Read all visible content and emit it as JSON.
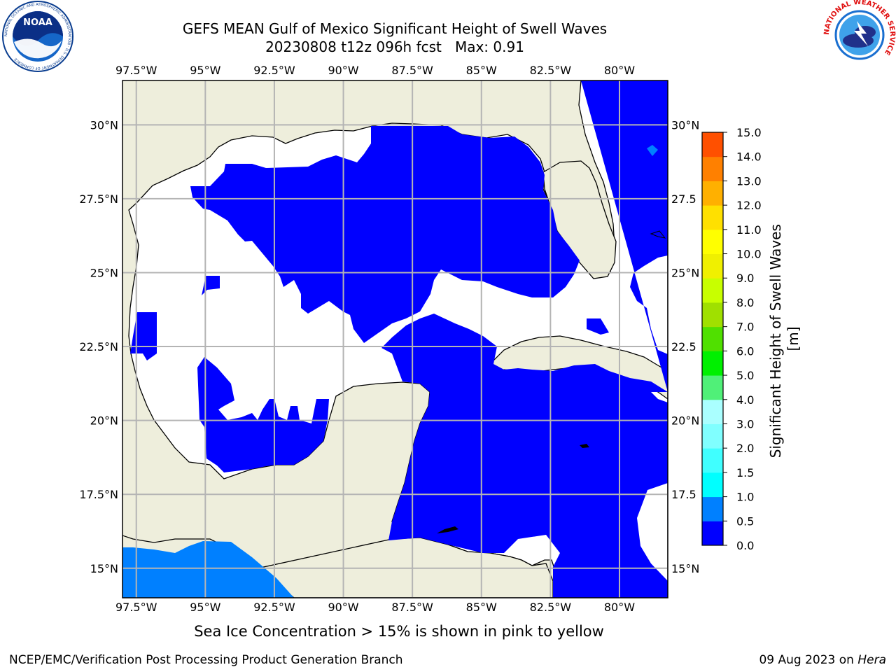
{
  "header": {
    "title_line1": "GEFS MEAN Gulf of Mexico Significant Height of Swell Waves",
    "title_line2": "20230808 t12z 096h fcst   Max: 0.91"
  },
  "logos": {
    "left": {
      "name": "NOAA",
      "ring_text": "NATIONAL OCEANIC AND ATMOSPHERIC ADMINISTRATION · U.S. DEPARTMENT OF COMMERCE"
    },
    "right": {
      "ring_text": "NATIONAL WEATHER SERVICE"
    }
  },
  "map": {
    "extent": {
      "lon_min": -98.0,
      "lon_max": -78.25,
      "lat_min": 14.0,
      "lat_max": 31.5
    },
    "lon_ticks": [
      {
        "lon": -97.5,
        "label": "97.5°W"
      },
      {
        "lon": -95.0,
        "label": "95°W"
      },
      {
        "lon": -92.5,
        "label": "92.5°W"
      },
      {
        "lon": -90.0,
        "label": "90°W"
      },
      {
        "lon": -87.5,
        "label": "87.5°W"
      },
      {
        "lon": -85.0,
        "label": "85°W"
      },
      {
        "lon": -82.5,
        "label": "82.5°W"
      },
      {
        "lon": -80.0,
        "label": "80°W"
      }
    ],
    "lat_ticks": [
      {
        "lat": 30.0,
        "label": "30°N"
      },
      {
        "lat": 27.5,
        "label": "27.5°N"
      },
      {
        "lat": 25.0,
        "label": "25°N"
      },
      {
        "lat": 22.5,
        "label": "22.5°N"
      },
      {
        "lat": 20.0,
        "label": "20°N"
      },
      {
        "lat": 17.5,
        "label": "17.5°N"
      },
      {
        "lat": 15.0,
        "label": "15°N"
      }
    ],
    "right_lat_ticks": [
      {
        "lat": 30.0,
        "label": "30°N"
      },
      {
        "lat": 27.5,
        "label": "27.5"
      },
      {
        "lat": 25.0,
        "label": "25°N"
      },
      {
        "lat": 22.5,
        "label": "22.5"
      },
      {
        "lat": 20.0,
        "label": "20°N"
      },
      {
        "lat": 17.5,
        "label": "17.5"
      },
      {
        "lat": 15.0,
        "label": "15°N"
      }
    ],
    "colors": {
      "land": "#eeeedc",
      "no_data": "#ffffff",
      "band_0_0_5": "#0000ff",
      "band_0_5_1_0": "#0080ff",
      "grid": "#b4b4b4"
    }
  },
  "colorbar": {
    "label": "Significant Height of Swell Waves [m]",
    "tick_labels": [
      "0.0",
      "0.5",
      "1.0",
      "1.5",
      "2.0",
      "3.0",
      "4.0",
      "5.0",
      "6.0",
      "7.0",
      "8.0",
      "9.0",
      "10.0",
      "11.0",
      "12.0",
      "13.0",
      "14.0",
      "15.0"
    ],
    "colors": [
      "#0000ff",
      "#0080ff",
      "#00ffff",
      "#40ffff",
      "#80ffff",
      "#aaffff",
      "#50f078",
      "#00f000",
      "#50e000",
      "#a0e000",
      "#c8ff00",
      "#f0f000",
      "#ffff00",
      "#ffe000",
      "#ffb000",
      "#ff8000",
      "#ff5000",
      "#ff2000"
    ]
  },
  "subtitle": "Sea Ice Concentration > 15% is shown in pink to yellow",
  "footer": {
    "left": "NCEP/EMC/Verification Post Processing Product Generation Branch",
    "right_prefix": "09 Aug 2023 on ",
    "right_host": "Hera"
  }
}
